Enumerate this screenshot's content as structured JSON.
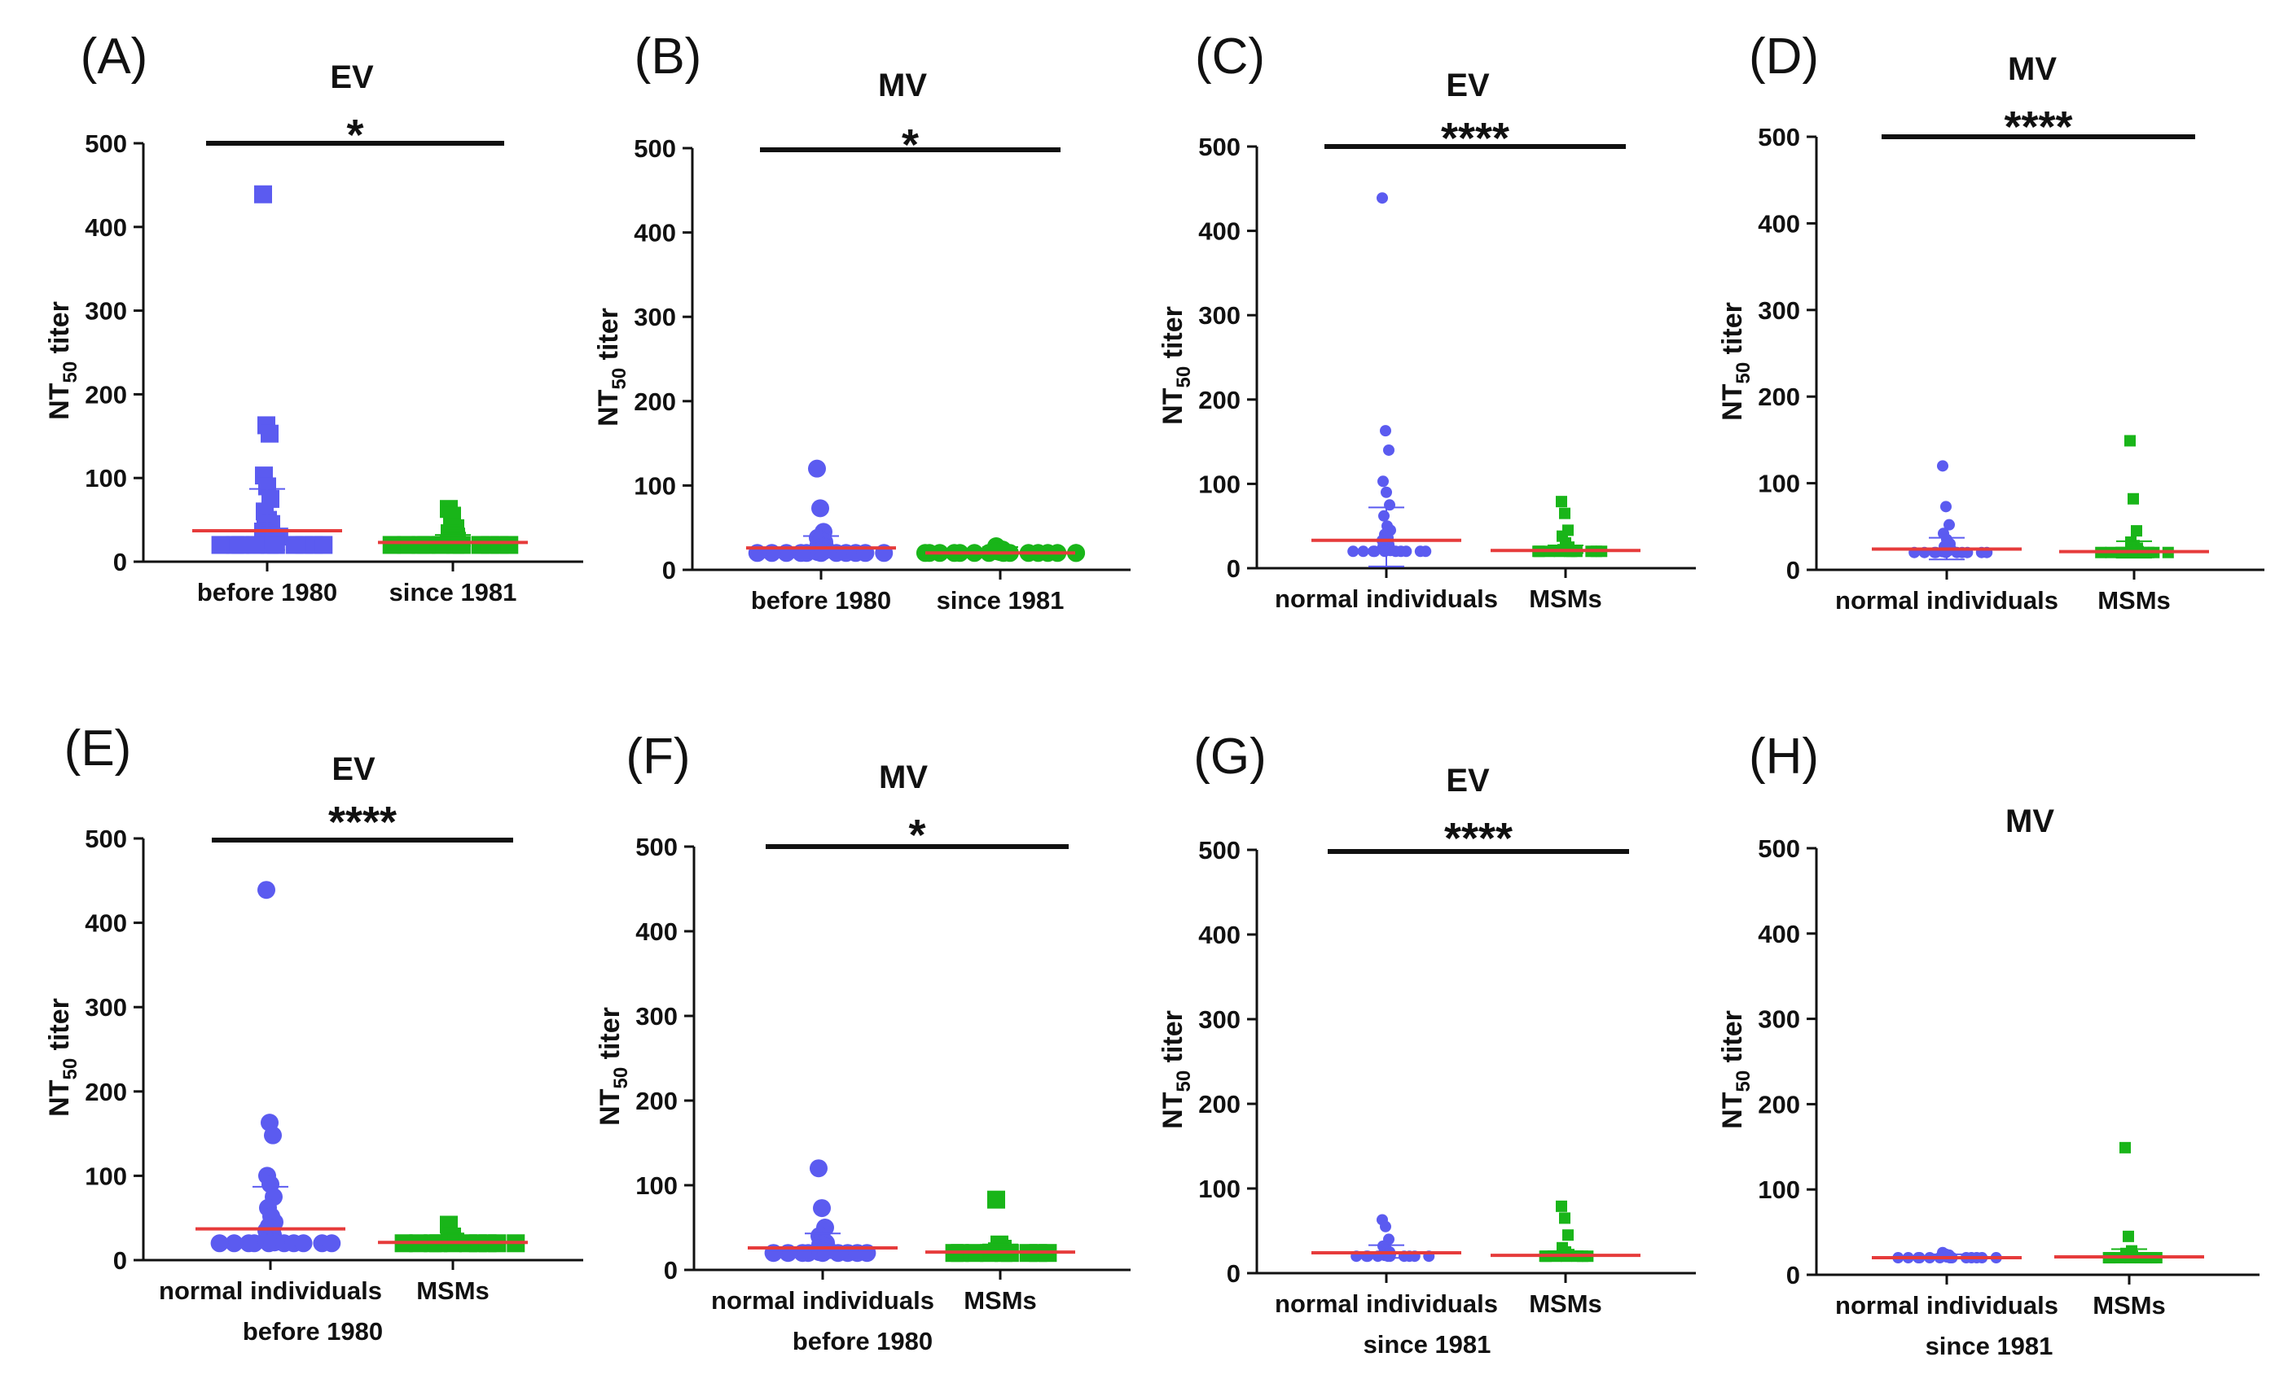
{
  "colors": {
    "group1": "#5b5bf0",
    "group2": "#19b519",
    "median": "#e63b3b",
    "axis": "#111111"
  },
  "ylabel": {
    "main": "NT",
    "sub": "50",
    "rest": " titer"
  },
  "chart_data": [
    {
      "panel": "(A)",
      "title": "EV",
      "type": "scatter",
      "marker": "square",
      "significance": "*",
      "categories": [
        "before 1980",
        "since 1981"
      ],
      "xlabel": "",
      "ylim": [
        0,
        500
      ],
      "yticks": [
        0,
        100,
        200,
        300,
        400,
        500
      ],
      "medians": [
        37,
        23
      ],
      "error_bars": [
        [
          14,
          87
        ],
        [
          19,
          32
        ]
      ],
      "series": [
        {
          "name": "before 1980",
          "values": [
            439,
            163,
            153,
            103,
            90,
            75,
            60,
            50,
            45,
            40,
            38,
            36,
            34,
            32,
            30,
            30,
            28,
            26,
            25,
            24,
            23,
            22,
            22,
            21,
            20,
            20,
            20,
            20,
            20,
            20,
            20,
            20,
            20,
            20
          ]
        },
        {
          "name": "since 1981",
          "values": [
            63,
            55,
            40,
            34,
            32,
            30,
            28,
            26,
            25,
            24,
            23,
            22,
            21,
            20,
            20,
            20,
            20,
            20,
            20,
            20,
            20,
            20,
            20,
            20
          ]
        }
      ]
    },
    {
      "panel": "(B)",
      "title": "MV",
      "type": "scatter",
      "marker": "circle",
      "significance": "*",
      "categories": [
        "before 1980",
        "since 1981"
      ],
      "xlabel": "",
      "ylim": [
        0,
        500
      ],
      "yticks": [
        0,
        100,
        200,
        300,
        400,
        500
      ],
      "medians": [
        26,
        20
      ],
      "error_bars": [
        [
          15,
          40
        ],
        [
          17,
          27
        ]
      ],
      "series": [
        {
          "name": "before 1980",
          "values": [
            120,
            73,
            45,
            38,
            35,
            33,
            30,
            28,
            27,
            26,
            25,
            24,
            23,
            22,
            21,
            20,
            20,
            20,
            20,
            20,
            20,
            20,
            20,
            20,
            20,
            20
          ]
        },
        {
          "name": "since 1981",
          "values": [
            28,
            25,
            24,
            22,
            21,
            20,
            20,
            20,
            20,
            20,
            20,
            20,
            20,
            20,
            20,
            20,
            20,
            20,
            20,
            20
          ]
        }
      ]
    },
    {
      "panel": "(C)",
      "title": "EV",
      "type": "scatter",
      "marker": "mixed",
      "significance": "****",
      "categories": [
        "normal individuals",
        "MSMs"
      ],
      "xlabel": "",
      "ylim": [
        0,
        500
      ],
      "yticks": [
        0,
        100,
        200,
        300,
        400,
        500
      ],
      "medians": [
        33,
        21
      ],
      "error_bars": [
        [
          2,
          72
        ],
        [
          18,
          27
        ]
      ],
      "series": [
        {
          "name": "normal individuals",
          "values": [
            439,
            163,
            140,
            103,
            90,
            75,
            62,
            50,
            45,
            40,
            36,
            33,
            30,
            28,
            26,
            25,
            24,
            23,
            22,
            21,
            20,
            20,
            20,
            20,
            20,
            20,
            20,
            20,
            20,
            20
          ]
        },
        {
          "name": "MSMs",
          "values": [
            79,
            65,
            45,
            38,
            30,
            25,
            22,
            21,
            20,
            20,
            20,
            20,
            20,
            20,
            20,
            20,
            20,
            20
          ]
        }
      ]
    },
    {
      "panel": "(D)",
      "title": "MV",
      "type": "scatter",
      "marker": "mixed",
      "significance": "****",
      "categories": [
        "normal individuals",
        "MSMs"
      ],
      "xlabel": "",
      "ylim": [
        0,
        500
      ],
      "yticks": [
        0,
        100,
        200,
        300,
        400,
        500
      ],
      "medians": [
        24,
        21
      ],
      "error_bars": [
        [
          12,
          37
        ],
        [
          14,
          33
        ]
      ],
      "series": [
        {
          "name": "normal individuals",
          "values": [
            120,
            73,
            52,
            42,
            35,
            30,
            27,
            25,
            24,
            23,
            22,
            21,
            20,
            20,
            20,
            20,
            20,
            20,
            20,
            20,
            20,
            20
          ]
        },
        {
          "name": "MSMs",
          "values": [
            149,
            82,
            45,
            32,
            28,
            25,
            23,
            22,
            21,
            20,
            20,
            20,
            20,
            20,
            20,
            20,
            20,
            20
          ]
        }
      ]
    },
    {
      "panel": "(E)",
      "title": "EV",
      "type": "scatter",
      "marker": "mixed",
      "significance": "****",
      "categories": [
        "normal individuals",
        "MSMs"
      ],
      "xlabel": "before 1980",
      "ylim": [
        0,
        500
      ],
      "yticks": [
        0,
        100,
        200,
        300,
        400,
        500
      ],
      "medians": [
        37,
        21
      ],
      "error_bars": [
        [
          15,
          87
        ],
        [
          18,
          27
        ]
      ],
      "series": [
        {
          "name": "normal individuals",
          "values": [
            439,
            163,
            148,
            100,
            90,
            75,
            62,
            52,
            45,
            40,
            37,
            35,
            32,
            30,
            28,
            26,
            25,
            24,
            22,
            21,
            20,
            20,
            20,
            20,
            20,
            20,
            20,
            20,
            20,
            20
          ]
        },
        {
          "name": "MSMs",
          "values": [
            42,
            28,
            22,
            21,
            20,
            20,
            20,
            20,
            20,
            20,
            20,
            20,
            20,
            20
          ]
        }
      ]
    },
    {
      "panel": "(F)",
      "title": "MV",
      "type": "scatter",
      "marker": "mixed",
      "significance": "*",
      "categories": [
        "normal individuals",
        "MSMs"
      ],
      "xlabel": "before 1980",
      "ylim": [
        0,
        500
      ],
      "yticks": [
        0,
        100,
        200,
        300,
        400,
        500
      ],
      "medians": [
        26,
        21
      ],
      "error_bars": [
        [
          14,
          43
        ],
        [
          17,
          30
        ]
      ],
      "series": [
        {
          "name": "normal individuals",
          "values": [
            120,
            73,
            50,
            40,
            35,
            32,
            30,
            28,
            27,
            26,
            25,
            24,
            23,
            22,
            21,
            20,
            20,
            20,
            20,
            20,
            20,
            20,
            20,
            20
          ]
        },
        {
          "name": "MSMs",
          "values": [
            83,
            30,
            25,
            22,
            21,
            20,
            20,
            20,
            20,
            20,
            20,
            20,
            20,
            20
          ]
        }
      ]
    },
    {
      "panel": "(G)",
      "title": "EV",
      "type": "scatter",
      "marker": "mixed",
      "significance": "****",
      "categories": [
        "normal individuals",
        "MSMs"
      ],
      "xlabel": "since 1981",
      "ylim": [
        0,
        500
      ],
      "yticks": [
        0,
        100,
        200,
        300,
        400,
        500
      ],
      "medians": [
        24,
        21
      ],
      "error_bars": [
        [
          18,
          33
        ],
        [
          18,
          26
        ]
      ],
      "series": [
        {
          "name": "normal individuals",
          "values": [
            63,
            55,
            40,
            32,
            28,
            25,
            24,
            23,
            22,
            21,
            20,
            20,
            20,
            20,
            20,
            20,
            20,
            20,
            20,
            20
          ]
        },
        {
          "name": "MSMs",
          "values": [
            79,
            65,
            45,
            30,
            25,
            22,
            21,
            20,
            20,
            20,
            20,
            20,
            20,
            20
          ]
        }
      ]
    },
    {
      "panel": "(H)",
      "title": "MV",
      "type": "scatter",
      "marker": "mixed",
      "significance": "",
      "categories": [
        "normal individuals",
        "MSMs"
      ],
      "xlabel": "since 1981",
      "ylim": [
        0,
        500
      ],
      "yticks": [
        0,
        100,
        200,
        300,
        400,
        500
      ],
      "medians": [
        20,
        21
      ],
      "error_bars": [
        [
          19,
          24
        ],
        [
          16,
          30
        ]
      ],
      "series": [
        {
          "name": "normal individuals",
          "values": [
            26,
            24,
            23,
            22,
            21,
            20,
            20,
            20,
            20,
            20,
            20,
            20,
            20,
            20,
            20,
            20,
            20,
            20
          ]
        },
        {
          "name": "MSMs",
          "values": [
            149,
            45,
            28,
            25,
            23,
            22,
            21,
            20,
            20,
            20,
            20,
            20,
            20,
            20,
            20
          ]
        }
      ]
    }
  ]
}
